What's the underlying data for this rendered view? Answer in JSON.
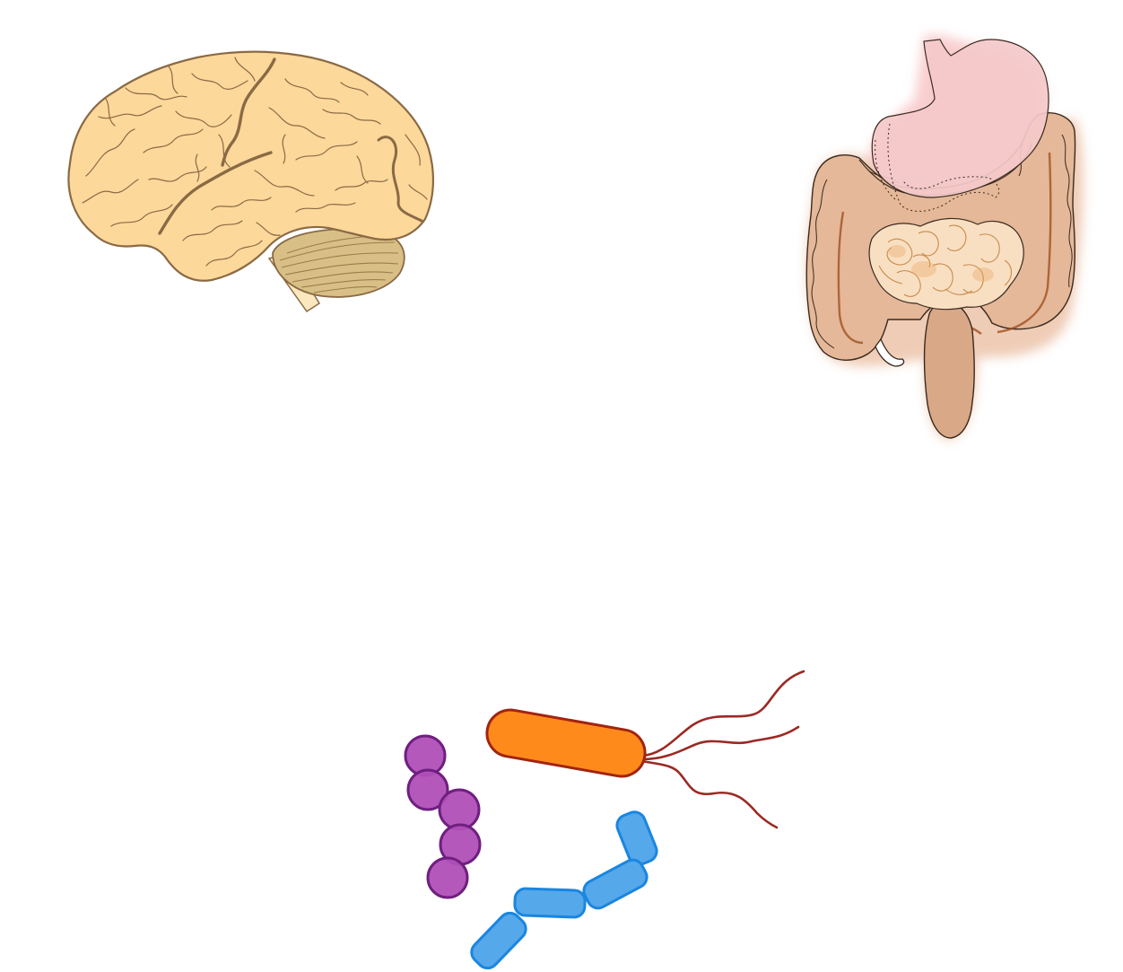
{
  "figure": {
    "illustrations": [
      {
        "id": "brain",
        "icon": "brain-icon",
        "fill": "#fdd89b",
        "stroke": "#8a6a44",
        "cerebellum_fill": "#d8bf86"
      },
      {
        "id": "gut",
        "icon": "digestive-tract-icon",
        "stomach_fill": "#f4c9ca",
        "intestine_fill": "#e2b896",
        "small_intestine_fill": "#f7dcc0",
        "stroke": "#3a2a20"
      },
      {
        "id": "microbes",
        "icon": "bacteria-icon",
        "bacillus": {
          "fill": "#ff8a1c",
          "stroke": "#a1240f",
          "flagella": "#9a2a24"
        },
        "streptococcus": {
          "fill": "#b04fb8",
          "stroke": "#6f1f80"
        },
        "rod_chain": {
          "fill": "#55a8ea",
          "stroke": "#1a86e0"
        }
      }
    ]
  }
}
